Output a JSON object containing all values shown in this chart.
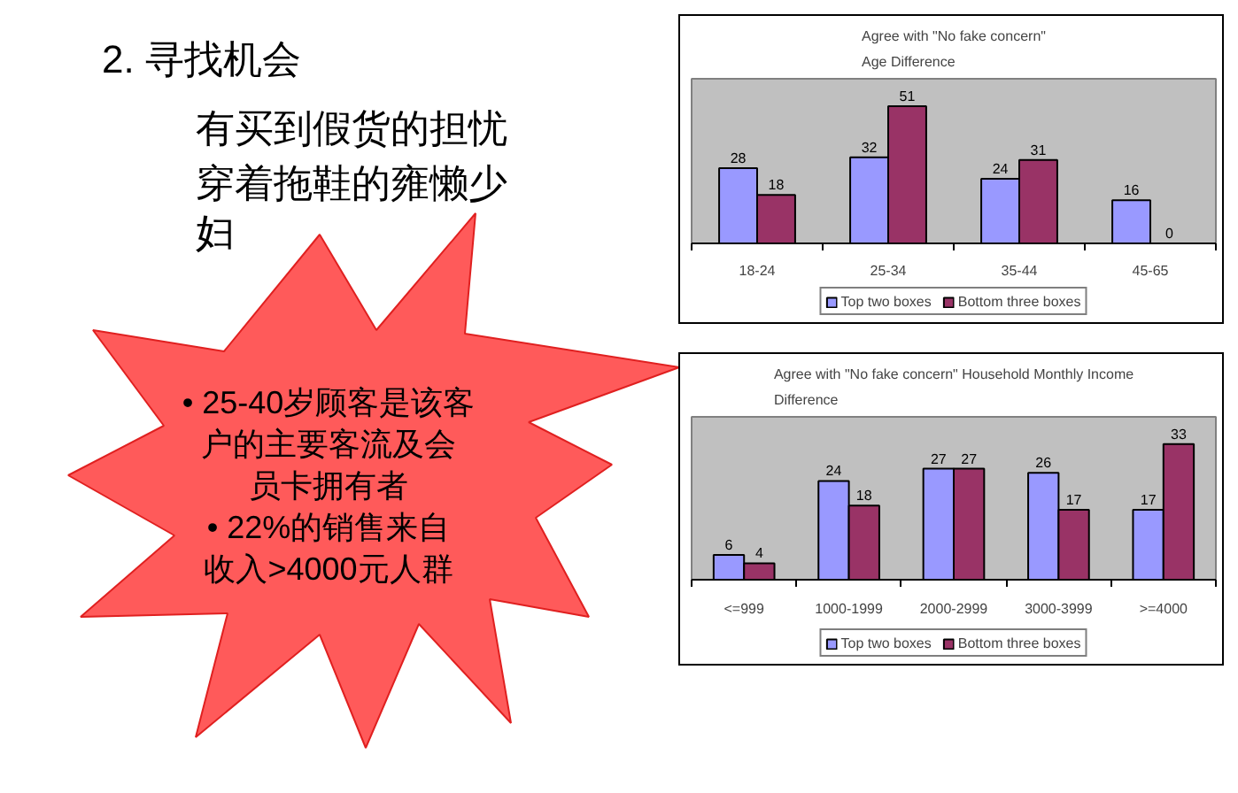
{
  "chart_data": [
    {
      "type": "other",
      "title": "2. 寻找机会",
      "annotations": [
        "有买到假货的担忧",
        "穿着拖鞋的雍懒少妇"
      ]
    },
    {
      "type": "bar",
      "title": "Agree with \"No fake concern\"",
      "subtitle": "Age Difference",
      "categories": [
        "18-24",
        "25-34",
        "35-44",
        "45-65"
      ],
      "series": [
        {
          "name": "Top two boxes",
          "color": "#9999ff",
          "values": [
            28,
            32,
            24,
            16
          ]
        },
        {
          "name": "Bottom three boxes",
          "color": "#993366",
          "values": [
            18,
            51,
            31,
            0
          ]
        }
      ],
      "data_labels": true,
      "legend": "bottom"
    },
    {
      "type": "other",
      "annotations": [
        "• 25-40岁顾客是该客户的主要客流及会员卡拥有者",
        "• 22%的销售来自收入>4000元人群"
      ]
    },
    {
      "type": "bar",
      "title": "Agree with \"No fake concern\" Household Monthly Income Difference",
      "categories": [
        "<=999",
        "1000-1999",
        "2000-2999",
        "3000-3999",
        ">=4000"
      ],
      "series": [
        {
          "name": "Top two boxes",
          "color": "#9999ff",
          "values": [
            6,
            24,
            27,
            26,
            17
          ]
        },
        {
          "name": "Bottom three boxes",
          "color": "#993366",
          "values": [
            4,
            18,
            27,
            17,
            33
          ]
        }
      ],
      "data_labels": true,
      "legend": "bottom"
    }
  ]
}
